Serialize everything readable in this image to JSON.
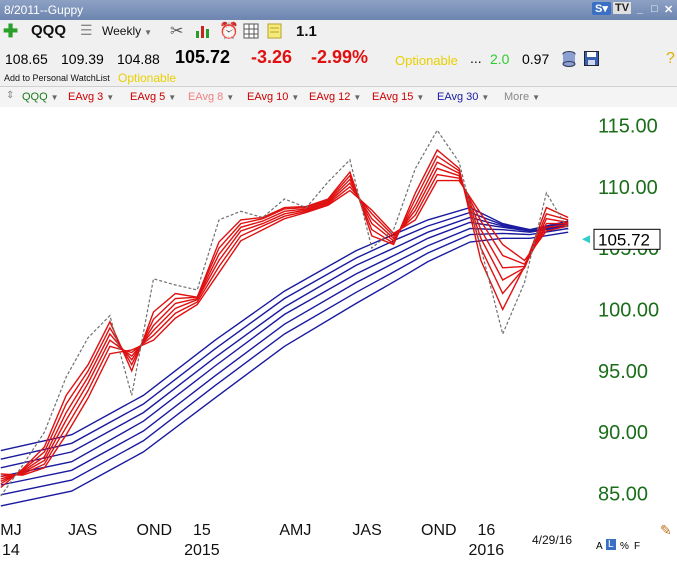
{
  "window": {
    "title": "8/2011--Guppy"
  },
  "toolbar": {
    "symbol": "QQQ",
    "period": "Weekly",
    "icons": [
      "plus-icon",
      "list-icon",
      "tools-icon",
      "bar-chart-icon",
      "alarm-clock-icon",
      "table-grid-icon",
      "note-icon"
    ],
    "zoom": "1.1"
  },
  "quote": {
    "open": "108.65",
    "high": "109.39",
    "low": "104.88",
    "last": "105.72",
    "change": "-3.26",
    "change_pct": "-2.99%",
    "optionable_label": "Optionable",
    "dots": "...",
    "value_green": "2.0",
    "value_black": "0.97",
    "watchlist_label": "Add to Personal WatchList",
    "optionable_label2": "Optionable"
  },
  "studies": {
    "main": "QQQ",
    "items": [
      {
        "label": "EAvg 3",
        "color": "#cc0000"
      },
      {
        "label": "EAvg 5",
        "color": "#cc0000"
      },
      {
        "label": "EAvg 8",
        "color": "#f08080"
      },
      {
        "label": "EAvg 10",
        "color": "#cc0000"
      },
      {
        "label": "EAvg 12",
        "color": "#cc0000"
      },
      {
        "label": "EAvg 15",
        "color": "#cc0000"
      },
      {
        "label": "EAvg 30",
        "color": "#1a1aa0"
      }
    ],
    "more": "More"
  },
  "footer": {
    "date": "4/29/16",
    "scale_labels": [
      "A",
      "L",
      "%",
      "F"
    ]
  },
  "colors": {
    "fast_ema": "#e01010",
    "slow_ema": "#1a1aa0",
    "price": "#707070",
    "axis_text": "#1a6e1a",
    "current_marker": "#33cccc"
  },
  "chart_data": {
    "type": "line",
    "title": "",
    "xlabel": "",
    "ylabel": "",
    "ylim": [
      83.5,
      116.5
    ],
    "y_ticks": [
      "115.00",
      "110.00",
      "105.00",
      "100.00",
      "95.00",
      "90.00",
      "85.00"
    ],
    "x_ticks": [
      {
        "label": "MJ",
        "sub": "14",
        "date": "2014-05-15"
      },
      {
        "label": "JAS",
        "date": "2014-08-15"
      },
      {
        "label": "OND",
        "date": "2014-11-15"
      },
      {
        "label": "15",
        "sub": "2015",
        "date": "2015-01-15"
      },
      {
        "label": "AMJ",
        "date": "2015-05-15"
      },
      {
        "label": "JAS",
        "date": "2015-08-15"
      },
      {
        "label": "OND",
        "date": "2015-11-15"
      },
      {
        "label": "16",
        "sub": "2016",
        "date": "2016-01-15"
      }
    ],
    "x_range": [
      "2014-05-01",
      "2016-05-27"
    ],
    "last_value": "105.72",
    "series": [
      {
        "group": "price",
        "x": [
          "2014-05-02",
          "2014-05-30",
          "2014-06-27",
          "2014-07-25",
          "2014-08-22",
          "2014-09-19",
          "2014-10-17",
          "2014-11-14",
          "2014-12-12",
          "2015-01-09",
          "2015-02-06",
          "2015-03-06",
          "2015-04-03",
          "2015-05-01",
          "2015-05-29",
          "2015-06-26",
          "2015-07-24",
          "2015-08-21",
          "2015-09-18",
          "2015-10-16",
          "2015-11-13",
          "2015-12-11",
          "2016-01-08",
          "2016-02-05",
          "2016-03-04",
          "2016-04-01",
          "2016-04-29"
        ],
        "values": [
          84.8,
          87.3,
          90.0,
          94.5,
          97.7,
          99.5,
          93.0,
          102.5,
          102.0,
          101.6,
          107.3,
          108.0,
          107.5,
          109.0,
          108.3,
          110.4,
          112.2,
          105.0,
          106.5,
          111.5,
          114.6,
          112.0,
          105.0,
          98.0,
          102.2,
          109.5,
          106.5
        ]
      },
      {
        "group": "fast",
        "x": [
          "2014-05-02",
          "2014-05-30",
          "2014-06-27",
          "2014-07-25",
          "2014-08-22",
          "2014-09-19",
          "2014-10-17",
          "2014-11-14",
          "2014-12-12",
          "2015-01-09",
          "2015-02-06",
          "2015-03-06",
          "2015-04-03",
          "2015-05-01",
          "2015-05-29",
          "2015-06-26",
          "2015-07-24",
          "2015-08-21",
          "2015-09-18",
          "2015-10-16",
          "2015-11-13",
          "2015-12-11",
          "2016-01-08",
          "2016-02-05",
          "2016-03-04",
          "2016-04-01",
          "2016-04-29"
        ],
        "values": [
          85.5,
          87.0,
          88.8,
          93.0,
          95.5,
          99.0,
          95.0,
          99.8,
          101.3,
          101.0,
          105.5,
          107.3,
          107.5,
          108.3,
          108.4,
          109.0,
          111.2,
          106.0,
          105.3,
          109.5,
          113.0,
          111.5,
          104.0,
          100.0,
          103.5,
          108.3,
          107.5
        ]
      },
      {
        "group": "fast",
        "x": [
          "2014-05-02",
          "2014-05-30",
          "2014-06-27",
          "2014-07-25",
          "2014-08-22",
          "2014-09-19",
          "2014-10-17",
          "2014-11-14",
          "2014-12-12",
          "2015-01-09",
          "2015-02-06",
          "2015-03-06",
          "2015-04-03",
          "2015-05-01",
          "2015-05-29",
          "2015-06-26",
          "2015-07-24",
          "2015-08-21",
          "2015-09-18",
          "2015-10-16",
          "2015-11-13",
          "2015-12-11",
          "2016-01-08",
          "2016-02-05",
          "2016-03-04",
          "2016-04-01",
          "2016-04-29"
        ],
        "values": [
          85.8,
          86.9,
          88.4,
          92.3,
          95.0,
          98.5,
          95.5,
          99.2,
          100.9,
          101.0,
          105.0,
          107.0,
          107.4,
          108.2,
          108.3,
          108.9,
          110.9,
          106.5,
          105.4,
          109.0,
          112.5,
          111.3,
          105.0,
          101.3,
          103.4,
          107.8,
          107.3
        ]
      },
      {
        "group": "fast",
        "x": [
          "2014-05-02",
          "2014-05-30",
          "2014-06-27",
          "2014-07-25",
          "2014-08-22",
          "2014-09-19",
          "2014-10-17",
          "2014-11-14",
          "2014-12-12",
          "2015-01-09",
          "2015-02-06",
          "2015-03-06",
          "2015-04-03",
          "2015-05-01",
          "2015-05-29",
          "2015-06-26",
          "2015-07-24",
          "2015-08-21",
          "2015-09-18",
          "2015-10-16",
          "2015-11-13",
          "2015-12-11",
          "2016-01-08",
          "2016-02-05",
          "2016-03-04",
          "2016-04-01",
          "2016-04-29"
        ],
        "values": [
          86.0,
          86.8,
          88.0,
          91.6,
          94.5,
          98.0,
          95.9,
          98.7,
          100.5,
          100.9,
          104.5,
          106.7,
          107.2,
          108.0,
          108.2,
          108.8,
          110.6,
          107.0,
          105.6,
          108.5,
          112.0,
          111.1,
          105.8,
          102.4,
          103.4,
          107.4,
          107.1
        ]
      },
      {
        "group": "fast",
        "x": [
          "2014-05-02",
          "2014-05-30",
          "2014-06-27",
          "2014-07-25",
          "2014-08-22",
          "2014-09-19",
          "2014-10-17",
          "2014-11-14",
          "2014-12-12",
          "2015-01-09",
          "2015-02-06",
          "2015-03-06",
          "2015-04-03",
          "2015-05-01",
          "2015-05-29",
          "2015-06-26",
          "2015-07-24",
          "2015-08-21",
          "2015-09-18",
          "2015-10-16",
          "2015-11-13",
          "2015-12-11",
          "2016-01-08",
          "2016-02-05",
          "2016-03-04",
          "2016-04-01",
          "2016-04-29"
        ],
        "values": [
          86.2,
          86.7,
          87.7,
          91.0,
          94.0,
          97.5,
          96.2,
          98.3,
          100.1,
          100.8,
          104.0,
          106.4,
          107.0,
          107.8,
          108.1,
          108.7,
          110.3,
          107.4,
          105.8,
          108.1,
          111.5,
          110.9,
          106.5,
          103.4,
          103.5,
          107.0,
          107.0
        ]
      },
      {
        "group": "fast",
        "x": [
          "2014-05-02",
          "2014-05-30",
          "2014-06-27",
          "2014-07-25",
          "2014-08-22",
          "2014-09-19",
          "2014-10-17",
          "2014-11-14",
          "2014-12-12",
          "2015-01-09",
          "2015-02-06",
          "2015-03-06",
          "2015-04-03",
          "2015-05-01",
          "2015-05-29",
          "2015-06-26",
          "2015-07-24",
          "2015-08-21",
          "2015-09-18",
          "2015-10-16",
          "2015-11-13",
          "2015-12-11",
          "2016-01-08",
          "2016-02-05",
          "2016-03-04",
          "2016-04-01",
          "2016-04-29"
        ],
        "values": [
          86.4,
          86.6,
          87.4,
          90.4,
          93.4,
          97.0,
          96.5,
          97.9,
          99.7,
          100.6,
          103.5,
          106.0,
          106.8,
          107.6,
          108.0,
          108.6,
          110.0,
          107.8,
          106.0,
          107.7,
          111.0,
          110.7,
          107.2,
          104.4,
          103.7,
          106.7,
          106.9
        ]
      },
      {
        "group": "fast",
        "x": [
          "2014-05-02",
          "2014-05-30",
          "2014-06-27",
          "2014-07-25",
          "2014-08-22",
          "2014-09-19",
          "2014-10-17",
          "2014-11-14",
          "2014-12-12",
          "2015-01-09",
          "2015-02-06",
          "2015-03-06",
          "2015-04-03",
          "2015-05-01",
          "2015-05-29",
          "2015-06-26",
          "2015-07-24",
          "2015-08-21",
          "2015-09-18",
          "2015-10-16",
          "2015-11-13",
          "2015-12-11",
          "2016-01-08",
          "2016-02-05",
          "2016-03-04",
          "2016-04-01",
          "2016-04-29"
        ],
        "values": [
          86.6,
          86.5,
          87.1,
          89.8,
          92.8,
          96.4,
          96.7,
          97.5,
          99.3,
          100.4,
          103.0,
          105.6,
          106.5,
          107.4,
          107.9,
          108.5,
          109.7,
          108.1,
          106.2,
          107.3,
          110.5,
          110.5,
          107.8,
          105.3,
          104.0,
          106.4,
          106.8
        ]
      },
      {
        "group": "slow",
        "x": [
          "2014-05-02",
          "2014-08-01",
          "2014-11-01",
          "2015-02-01",
          "2015-05-01",
          "2015-08-01",
          "2015-09-25",
          "2015-11-01",
          "2015-12-25",
          "2016-02-05",
          "2016-03-11",
          "2016-04-29"
        ],
        "values": [
          88.5,
          89.8,
          93.0,
          97.5,
          101.5,
          104.8,
          106.3,
          107.3,
          108.3,
          107.0,
          106.5,
          107.2
        ]
      },
      {
        "group": "slow",
        "x": [
          "2014-05-02",
          "2014-08-01",
          "2014-11-01",
          "2015-02-01",
          "2015-05-01",
          "2015-08-01",
          "2015-09-25",
          "2015-11-01",
          "2015-12-25",
          "2016-02-05",
          "2016-03-11",
          "2016-04-29"
        ],
        "values": [
          87.8,
          89.1,
          92.3,
          96.8,
          100.9,
          104.2,
          105.8,
          106.8,
          107.9,
          106.9,
          106.5,
          107.1
        ]
      },
      {
        "group": "slow",
        "x": [
          "2014-05-02",
          "2014-08-01",
          "2014-11-01",
          "2015-02-01",
          "2015-05-01",
          "2015-08-01",
          "2015-09-25",
          "2015-11-01",
          "2015-12-25",
          "2016-02-05",
          "2016-03-11",
          "2016-04-29"
        ],
        "values": [
          87.1,
          88.4,
          91.6,
          96.1,
          100.2,
          103.6,
          105.2,
          106.3,
          107.5,
          106.8,
          106.4,
          107.0
        ]
      },
      {
        "group": "slow",
        "x": [
          "2014-05-02",
          "2014-08-01",
          "2014-11-01",
          "2015-02-01",
          "2015-05-01",
          "2015-08-01",
          "2015-09-25",
          "2015-11-01",
          "2015-12-25",
          "2016-02-05",
          "2016-03-11",
          "2016-04-29"
        ],
        "values": [
          86.4,
          87.6,
          90.9,
          95.4,
          99.6,
          102.9,
          104.6,
          105.8,
          107.1,
          106.7,
          106.4,
          106.9
        ]
      },
      {
        "group": "slow",
        "x": [
          "2014-05-02",
          "2014-08-01",
          "2014-11-01",
          "2015-02-01",
          "2015-05-01",
          "2015-08-01",
          "2015-09-25",
          "2015-11-01",
          "2015-12-25",
          "2016-02-05",
          "2016-03-11",
          "2016-04-29"
        ],
        "values": [
          85.7,
          86.9,
          90.1,
          94.6,
          98.8,
          102.2,
          104.0,
          105.2,
          106.6,
          106.5,
          106.3,
          106.8
        ]
      },
      {
        "group": "slow",
        "x": [
          "2014-05-02",
          "2014-08-01",
          "2014-11-01",
          "2015-02-01",
          "2015-05-01",
          "2015-08-01",
          "2015-09-25",
          "2015-11-01",
          "2015-12-25",
          "2016-02-05",
          "2016-03-11",
          "2016-04-29"
        ],
        "values": [
          84.9,
          86.1,
          89.3,
          93.8,
          98.0,
          101.4,
          103.3,
          104.6,
          106.1,
          106.2,
          106.1,
          106.6
        ]
      },
      {
        "group": "slow",
        "x": [
          "2014-05-02",
          "2014-08-01",
          "2014-11-01",
          "2015-02-01",
          "2015-05-01",
          "2015-08-01",
          "2015-09-25",
          "2015-11-01",
          "2015-12-25",
          "2016-02-05",
          "2016-03-11",
          "2016-04-29"
        ],
        "values": [
          84.0,
          85.2,
          88.4,
          92.8,
          97.0,
          100.5,
          102.5,
          103.9,
          105.5,
          105.8,
          105.8,
          106.3
        ]
      }
    ]
  }
}
